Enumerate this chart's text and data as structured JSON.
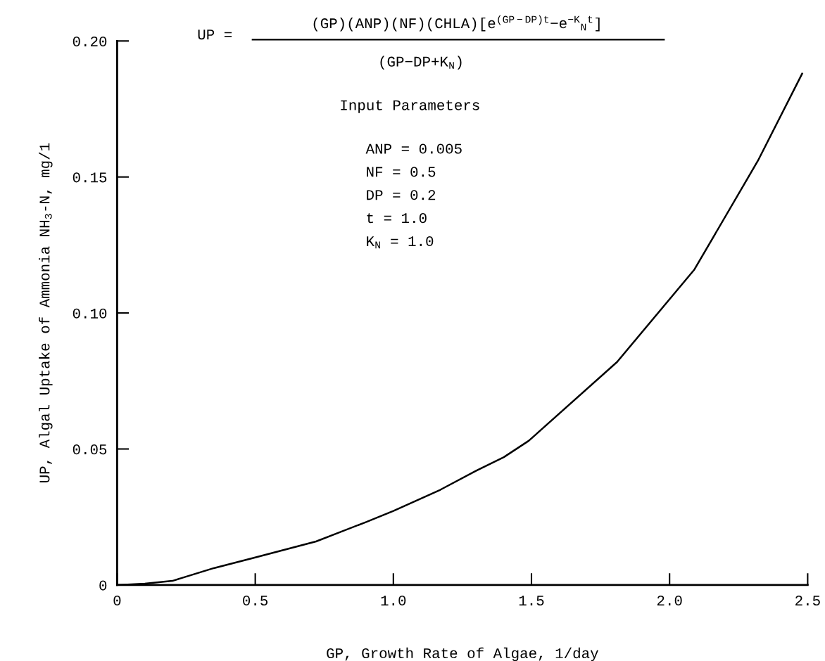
{
  "chart_data": {
    "type": "line",
    "xlabel": "GP, Growth Rate of Algae, 1/day",
    "ylabel": "UP, Algal Uptake of Ammonia NH$_{3}$-N, mg/1",
    "annotations": [
      "UP =",
      "(GP)(ANP)(NF)(CHLA)[e$^{(GP−DP)t}$−e$^{−K}$$_{N}$$^{t}$]",
      "(GP−DP+K$_{N}$)",
      "Input Parameters",
      "ANP = 0.005",
      "NF = 0.5",
      "DP = 0.2",
      "t = 1.0",
      "K$_{N}$ = 1.0"
    ],
    "series": [
      {
        "color": "#000000",
        "x": [
          0,
          0.1,
          0.2,
          0.35,
          0.5,
          0.72,
          0.9,
          1.0,
          1.17,
          1.3,
          1.4,
          1.49,
          1.81,
          2.09,
          2.32,
          2.48
        ],
        "values": [
          0,
          0.0005,
          0.0015,
          0.0062,
          0.0101,
          0.016,
          0.0231,
          0.0272,
          0.035,
          0.042,
          0.047,
          0.053,
          0.082,
          0.116,
          0.156,
          0.188
        ]
      }
    ],
    "xlim": [
      0,
      2.5
    ],
    "xticks": [
      0,
      {
        "value": 0.5,
        "label": "0.5"
      },
      {
        "value": 1.0,
        "label": "1.0"
      },
      {
        "value": 1.5,
        "label": "1.5"
      },
      {
        "value": 2.0,
        "label": "2.0"
      },
      {
        "value": 2.5,
        "label": "2.5"
      }
    ],
    "ylim": [
      0,
      0.2
    ],
    "yticks": [
      0,
      0.05,
      {
        "value": 0.1,
        "label": "0.10"
      },
      0.15,
      {
        "value": 0.2,
        "label": "0.20"
      }
    ],
    "grid": false,
    "legend": false,
    "marker": "none",
    "line_style": "solid"
  }
}
